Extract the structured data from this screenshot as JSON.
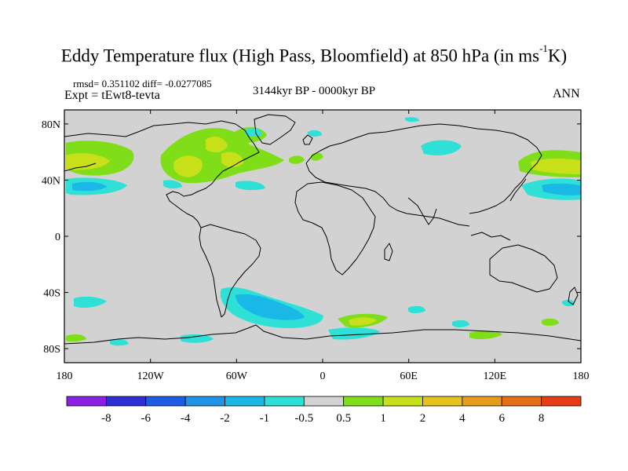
{
  "title": {
    "main": "Eddy Temperature flux (High Pass, Bloomfield) at 850 hPa (in ms",
    "sup": "-1",
    "end": "K)"
  },
  "stats": {
    "rmsd_label": "rmsd= 0.351102 diff= -0.0277085",
    "expt_label": "Expt = tEwt8-tevta"
  },
  "period": "3144kyr BP - 0000kyr BP",
  "season": "ANN",
  "axes": {
    "lon_ticks": [
      "180",
      "120W",
      "60W",
      "0",
      "60E",
      "120E",
      "180"
    ],
    "lat_ticks": [
      "80N",
      "40N",
      "0",
      "40S",
      "80S"
    ]
  },
  "colorbar": {
    "labels": [
      "-8",
      "-6",
      "-4",
      "-2",
      "-1",
      "-0.5",
      "0.5",
      "1",
      "2",
      "4",
      "6",
      "8"
    ],
    "colors": [
      "#8c1fe6",
      "#2e2ed6",
      "#1f5ce6",
      "#1f94e6",
      "#19b8e6",
      "#2ee0d6",
      "#d2d2d2",
      "#80de18",
      "#c8e01a",
      "#e6c21a",
      "#e69c18",
      "#e66e18",
      "#e63c18"
    ]
  },
  "map": {
    "land_color": "#d2d2d2",
    "coast_color": "#000000"
  }
}
